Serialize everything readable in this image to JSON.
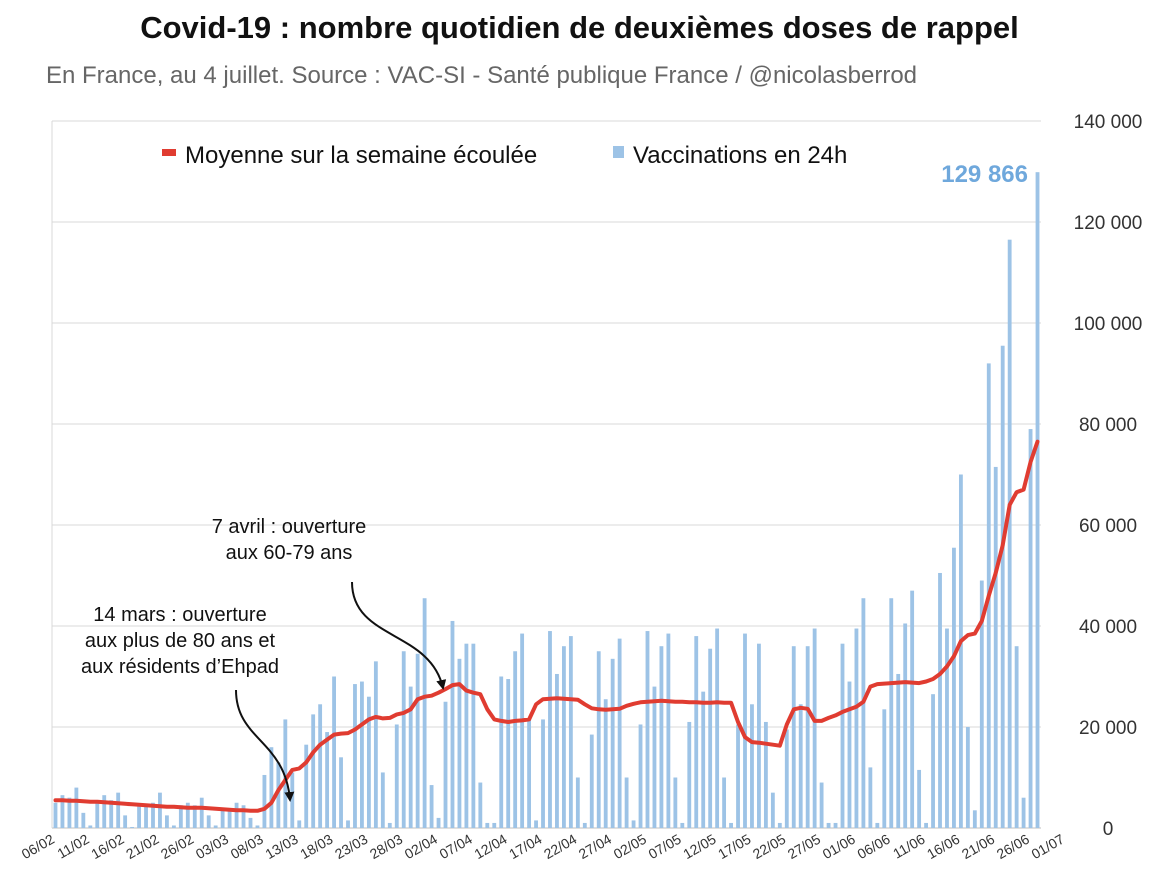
{
  "title": "Covid-19 : nombre quotidien de deuxièmes doses de rappel",
  "subtitle": "En France, au 4 juillet. Source : VAC-SI - Santé publique France / @nicolasberrod",
  "colors": {
    "bar": "#9DC3E6",
    "line": "#E03C31",
    "grid": "#D9D9D9",
    "highlight": "#6FA8DC",
    "text": "#333333"
  },
  "chart_data": {
    "type": "bar+line",
    "title": "Covid-19 : nombre quotidien de deuxièmes doses de rappel",
    "ylim": [
      0,
      140000
    ],
    "y_ticks": [
      0,
      20000,
      40000,
      60000,
      80000,
      100000,
      120000,
      140000
    ],
    "y_tick_labels": [
      "0",
      "20 000",
      "40 000",
      "60 000",
      "80 000",
      "100 000",
      "120 000",
      "140 000"
    ],
    "x_tick_labels": [
      "06/02",
      "11/02",
      "16/02",
      "21/02",
      "26/02",
      "03/03",
      "08/03",
      "13/03",
      "18/03",
      "23/03",
      "28/03",
      "02/04",
      "07/04",
      "12/04",
      "17/04",
      "22/04",
      "27/04",
      "02/05",
      "07/05",
      "12/05",
      "17/05",
      "22/05",
      "27/05",
      "01/06",
      "06/06",
      "11/06",
      "16/06",
      "21/06",
      "26/06",
      "01/07"
    ],
    "first_date": "06/02",
    "last_date": "04/07",
    "legend": {
      "line": "Moyenne sur la semaine écoulée",
      "bars": "Vaccinations en 24h",
      "position": "top"
    },
    "series": [
      {
        "name": "Vaccinations en 24h",
        "type": "bar",
        "values": [
          5000,
          6500,
          6000,
          8000,
          3000,
          500,
          5500,
          6500,
          5500,
          7000,
          2500,
          200,
          4500,
          4500,
          5000,
          7000,
          2500,
          500,
          4500,
          5000,
          4500,
          6000,
          2500,
          500,
          3500,
          3500,
          5000,
          4500,
          2000,
          500,
          10500,
          16000,
          13000,
          21500,
          11000,
          1500,
          16500,
          22500,
          24500,
          19000,
          30000,
          14000,
          1500,
          28500,
          29000,
          26000,
          33000,
          11000,
          1000,
          20500,
          35000,
          28000,
          34500,
          45500,
          8500,
          2000,
          25000,
          41000,
          33500,
          36500,
          36500,
          9000,
          1000,
          1000,
          30000,
          29500,
          35000,
          38500,
          21500,
          1500,
          21500,
          39000,
          30500,
          36000,
          38000,
          10000,
          1000,
          18500,
          35000,
          25500,
          33500,
          37500,
          10000,
          1500,
          20500,
          39000,
          28000,
          36000,
          38500,
          10000,
          1000,
          21000,
          38000,
          27000,
          35500,
          39500,
          10000,
          1000,
          20500,
          38500,
          24500,
          36500,
          21000,
          7000,
          1000,
          19500,
          36000,
          24500,
          36000,
          39500,
          9000,
          1000,
          1000,
          36500,
          29000,
          39500,
          45500,
          12000,
          1000,
          23500,
          45500,
          30500,
          40500,
          47000,
          11500,
          1000,
          26500,
          50500,
          39500,
          55500,
          70000,
          20000,
          3500,
          49000,
          92000,
          71500,
          95500,
          116500,
          36000,
          6000,
          79000,
          129866
        ]
      },
      {
        "name": "Moyenne sur la semaine écoulée",
        "type": "line",
        "values": [
          5500,
          5500,
          5400,
          5400,
          5300,
          5200,
          5200,
          5100,
          5000,
          4900,
          4800,
          4700,
          4600,
          4500,
          4400,
          4300,
          4200,
          4200,
          4100,
          4000,
          4000,
          4000,
          3900,
          3800,
          3700,
          3600,
          3500,
          3500,
          3400,
          3400,
          3800,
          5000,
          7500,
          9500,
          11500,
          11800,
          13000,
          15000,
          16500,
          17500,
          18500,
          18700,
          18800,
          19500,
          20500,
          21500,
          22000,
          21700,
          21800,
          22500,
          22800,
          23500,
          25500,
          26000,
          26200,
          26800,
          27500,
          28300,
          28500,
          27200,
          26800,
          26500,
          23500,
          21500,
          21200,
          21000,
          21200,
          21300,
          21500,
          24500,
          25500,
          25600,
          25700,
          25600,
          25500,
          25400,
          24500,
          23700,
          23500,
          23400,
          23500,
          23600,
          24200,
          24600,
          24900,
          25000,
          25100,
          25200,
          25100,
          25000,
          25000,
          24900,
          24900,
          24800,
          24800,
          24900,
          24800,
          24800,
          21000,
          18000,
          17000,
          16900,
          16700,
          16500,
          16300,
          20500,
          23500,
          23800,
          23600,
          21200,
          21200,
          21800,
          22300,
          23000,
          23500,
          24000,
          25000,
          28000,
          28500,
          28600,
          28700,
          28800,
          28900,
          28800,
          28700,
          29000,
          29500,
          30500,
          32000,
          34000,
          37000,
          38200,
          38500,
          41000,
          46000,
          50500,
          56000,
          64000,
          66500,
          67000,
          72500,
          76500
        ]
      }
    ],
    "annotations": [
      {
        "lines": [
          "7 avril : ouverture",
          "aux 60-79 ans"
        ],
        "target_date": "07/04"
      },
      {
        "lines": [
          "14 mars : ouverture",
          "aux plus de 80 ans et",
          "aux résidents d’Ehpad"
        ],
        "target_date": "13/03"
      }
    ],
    "last_value_label": "129 866"
  }
}
